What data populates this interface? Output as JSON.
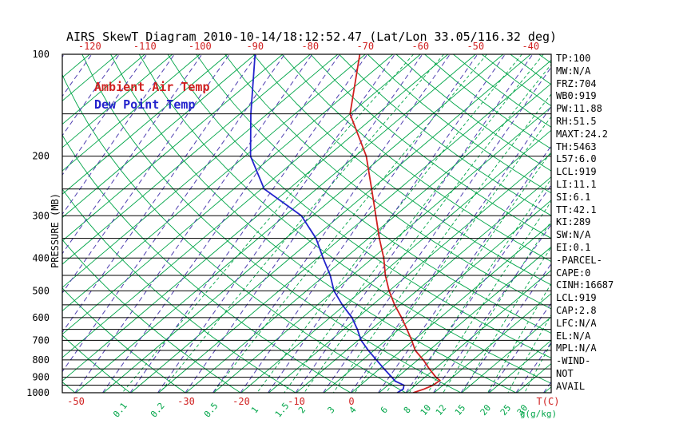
{
  "title": "AIRS SkewT Diagram 2010-10-14/18:12:52.47 (Lat/Lon 33.05/116.32 deg)",
  "legend": {
    "air_temp": "Ambient Air Temp",
    "dew_point": "Dew Point Temp"
  },
  "axes": {
    "pressure_axis_label": "PRESSURE (MB)",
    "pressure_ticks": [
      100,
      200,
      300,
      400,
      500,
      600,
      700,
      800,
      900,
      1000
    ],
    "top_temp_ticks_c": [
      -120,
      -110,
      -100,
      -90,
      -80,
      -70,
      -60,
      -50,
      -40
    ],
    "bottom_temp_ticks_c": [
      -50,
      -30,
      -20,
      -10,
      0
    ],
    "temp_unit_label": "T(C)",
    "mixing_ratio_labels": [
      0.1,
      0.2,
      0.5,
      1,
      1.5,
      2,
      3,
      4,
      6,
      8,
      10,
      12,
      15,
      20,
      25,
      30
    ],
    "mixing_unit_label": "g(g/kg)"
  },
  "stats_panel": {
    "lines": [
      "TP:100",
      "MW:N/A",
      "FRZ:704",
      "WB0:919",
      "PW:11.88",
      "RH:51.5",
      "MAXT:24.2",
      "TH:5463",
      "L57:6.0",
      "LCL:919",
      "LI:11.1",
      "SI:6.1",
      "TT:42.1",
      "KI:289",
      "SW:N/A",
      "EI:0.1",
      "-PARCEL-",
      "CAPE:0",
      "CINH:16687",
      "LCL:919",
      "CAP:2.8",
      "LFC:N/A",
      "EL:N/A",
      "MPL:N/A",
      "-WIND-",
      "NOT",
      "AVAIL"
    ]
  },
  "colors": {
    "temp_red": "#d02020",
    "dew_blue": "#2323cc",
    "line_green": "#00a548",
    "moist_purple": "#4f3fb0",
    "black": "#000000"
  },
  "chart_data": {
    "type": "line",
    "title": "AIRS SkewT Diagram 2010-10-14/18:12:52.47 (Lat/Lon 33.05/116.32 deg)",
    "xlabel": "T(C)",
    "ylabel": "PRESSURE (MB)",
    "y_scale": "log",
    "ylim": [
      1000,
      100
    ],
    "x_bottom_range_c": [
      -55,
      35
    ],
    "skew": "isotherms slanted up-right (skew-T)",
    "grid": "isobars every 50 mb, isotherms every 5 C, dry adiabats, dashed moist adiabats, dashed mixing-ratio lines",
    "legend_position": "upper-left",
    "series": [
      {
        "name": "Ambient Air Temp",
        "color": "#d02020",
        "points_p_t": [
          [
            100,
            -71
          ],
          [
            150,
            -60
          ],
          [
            200,
            -48
          ],
          [
            250,
            -40
          ],
          [
            300,
            -33.5
          ],
          [
            350,
            -28
          ],
          [
            400,
            -23
          ],
          [
            450,
            -19
          ],
          [
            500,
            -15
          ],
          [
            550,
            -11
          ],
          [
            600,
            -7
          ],
          [
            650,
            -3.5
          ],
          [
            700,
            -0.3
          ],
          [
            750,
            2.5
          ],
          [
            800,
            6
          ],
          [
            850,
            9
          ],
          [
            900,
            12
          ],
          [
            920,
            13.4
          ],
          [
            950,
            13.2
          ],
          [
            975,
            12.4
          ],
          [
            1000,
            11.2
          ]
        ]
      },
      {
        "name": "Dew Point Temp",
        "color": "#2323cc",
        "points_p_t": [
          [
            100,
            -90
          ],
          [
            150,
            -78
          ],
          [
            200,
            -69
          ],
          [
            250,
            -59.5
          ],
          [
            300,
            -47
          ],
          [
            350,
            -39.5
          ],
          [
            400,
            -34
          ],
          [
            450,
            -29
          ],
          [
            500,
            -25
          ],
          [
            550,
            -20.5
          ],
          [
            600,
            -16
          ],
          [
            650,
            -12.5
          ],
          [
            700,
            -9.5
          ],
          [
            750,
            -6
          ],
          [
            800,
            -2.5
          ],
          [
            850,
            0.8
          ],
          [
            900,
            4
          ],
          [
            925,
            5.5
          ],
          [
            950,
            7.9
          ],
          [
            975,
            8.6
          ],
          [
            1000,
            8.3
          ]
        ]
      }
    ],
    "background_lines": {
      "isobars_mb": [
        100,
        150,
        200,
        250,
        300,
        350,
        400,
        450,
        500,
        550,
        600,
        650,
        700,
        750,
        800,
        850,
        900,
        950,
        1000
      ],
      "isotherms_c": {
        "from": -160,
        "to": 60,
        "step": 5
      },
      "dry_adiabats_k": {
        "from": 223,
        "to": 453,
        "step": 10
      },
      "mixing_ratio_g_kg": [
        0.1,
        0.2,
        0.5,
        1,
        1.5,
        2,
        3,
        4,
        6,
        8,
        10,
        12,
        15,
        20,
        25,
        30
      ]
    }
  }
}
